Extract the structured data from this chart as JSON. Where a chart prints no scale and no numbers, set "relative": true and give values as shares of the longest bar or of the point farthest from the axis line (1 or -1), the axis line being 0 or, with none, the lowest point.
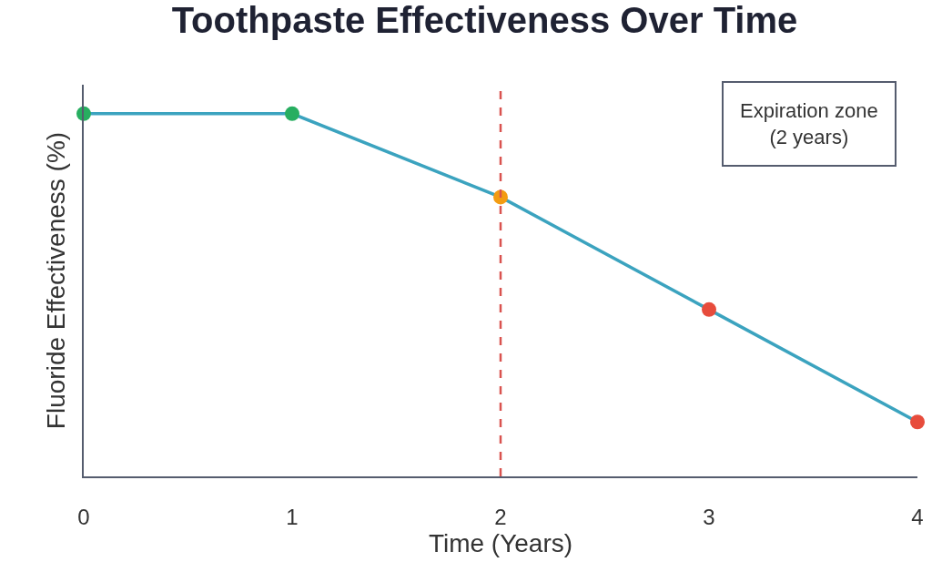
{
  "chart_data": {
    "type": "line",
    "title": "Toothpaste Effectiveness Over Time",
    "xlabel": "Time (Years)",
    "ylabel": "Fluoride Effectiveness (%)",
    "x": [
      0,
      1,
      2,
      3,
      4
    ],
    "xlim": [
      0,
      4
    ],
    "xticks": [
      0,
      1,
      2,
      3,
      4
    ],
    "relative": true,
    "tick_labels": "x",
    "series": [
      {
        "color": "#3ba3bf",
        "colors": [
          "#27ae60",
          "#27ae60",
          "#f39c12",
          "#e74c3c",
          "#e74c3c"
        ],
        "values": [
          1,
          1,
          0.77,
          0.46,
          0.15
        ]
      }
    ],
    "marker": "circle",
    "line_style": "solid",
    "legend": false,
    "ref_lines": [
      {
        "axis": "x",
        "value": 2,
        "color": "#d9534f",
        "line_style": "dashed"
      }
    ],
    "annotations": [
      "Expiration zone\n(2 years)"
    ]
  }
}
